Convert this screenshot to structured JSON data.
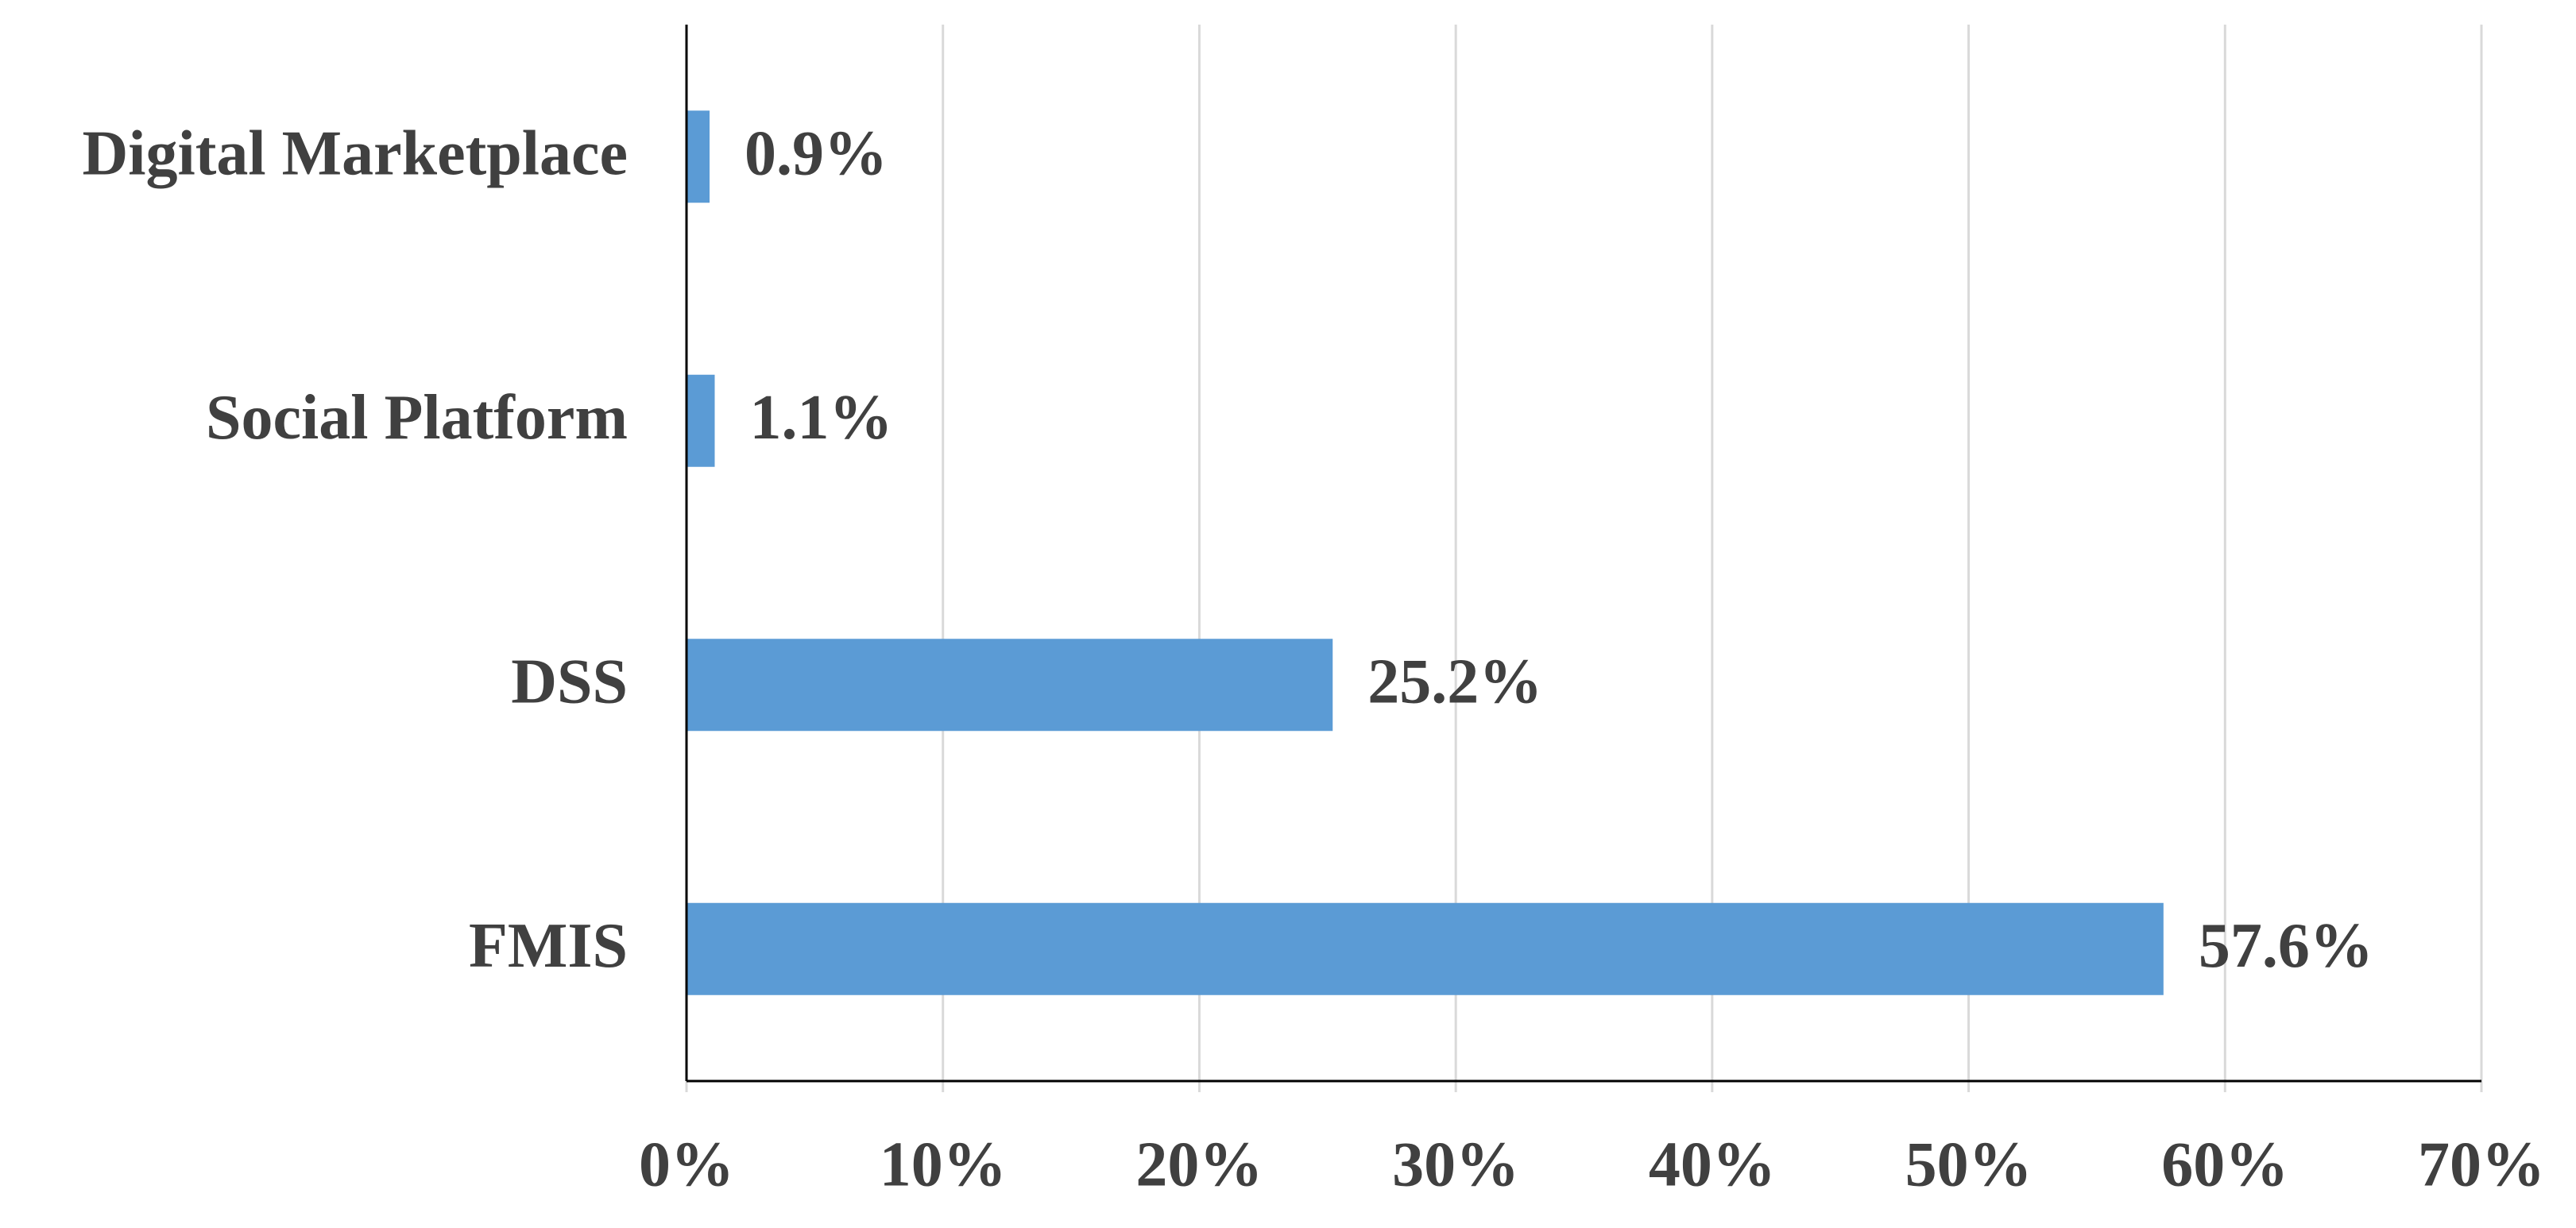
{
  "chart_data": {
    "type": "bar",
    "orientation": "horizontal",
    "categories": [
      "Digital Marketplace",
      "Social Platform",
      "DSS",
      "FMIS"
    ],
    "values": [
      0.9,
      1.1,
      25.2,
      57.6
    ],
    "value_labels": [
      "0.9%",
      "1.1%",
      "25.2%",
      "57.6%"
    ],
    "color": "#5b9bd5",
    "xlim": [
      0,
      70
    ],
    "xticks": [
      {
        "value": 0,
        "label": "0%"
      },
      {
        "value": 10,
        "label": "10%"
      },
      {
        "value": 20,
        "label": "20%"
      },
      {
        "value": 30,
        "label": "30%"
      },
      {
        "value": 40,
        "label": "40%"
      },
      {
        "value": 50,
        "label": "50%"
      },
      {
        "value": 60,
        "label": "60%"
      },
      {
        "value": 70,
        "label": "70%"
      }
    ],
    "grid": true
  }
}
